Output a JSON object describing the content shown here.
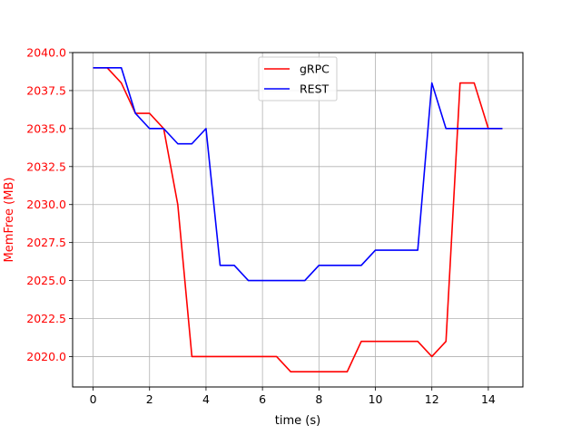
{
  "chart_data": {
    "type": "line",
    "title": "",
    "xlabel": "time (s)",
    "ylabel": "MemFree (MB)",
    "ylabel_color": "#ff0000",
    "ytick_color": "#ff0000",
    "xlim": [
      -0.725,
      15.225
    ],
    "ylim": [
      2018.0,
      2040.0
    ],
    "xticks": [
      0,
      2,
      4,
      6,
      8,
      10,
      12,
      14
    ],
    "yticks": [
      2020.0,
      2022.5,
      2025.0,
      2027.5,
      2030.0,
      2032.5,
      2035.0,
      2037.5,
      2040.0
    ],
    "ytick_labels": [
      "2020.0",
      "2022.5",
      "2025.0",
      "2027.5",
      "2030.0",
      "2032.5",
      "2035.0",
      "2037.5",
      "2040.0"
    ],
    "grid": true,
    "legend_position": "upper center",
    "x": [
      0,
      0.5,
      1,
      1.5,
      2,
      2.5,
      3,
      3.5,
      4,
      4.5,
      5,
      5.5,
      6,
      6.5,
      7,
      7.5,
      8,
      8.5,
      9,
      9.5,
      10,
      10.5,
      11,
      11.5,
      12,
      12.5,
      13,
      13.5,
      14,
      14.5
    ],
    "series": [
      {
        "name": "gRPC",
        "color": "#ff0000",
        "values": [
          2039,
          2039,
          2038,
          2036,
          2036,
          2035,
          2030,
          2020,
          2020,
          2020,
          2020,
          2020,
          2020,
          2020,
          2019,
          2019,
          2019,
          2019,
          2019,
          2021,
          2021,
          2021,
          2021,
          2021,
          2020,
          2021,
          2038,
          2038,
          2035,
          2035
        ]
      },
      {
        "name": "REST",
        "color": "#0000ff",
        "values": [
          2039,
          2039,
          2039,
          2036,
          2035,
          2035,
          2034,
          2034,
          2035,
          2026,
          2026,
          2025,
          2025,
          2025,
          2025,
          2025,
          2026,
          2026,
          2026,
          2026,
          2027,
          2027,
          2027,
          2027,
          2038,
          2035,
          2035,
          2035,
          2035,
          2035
        ]
      }
    ]
  }
}
